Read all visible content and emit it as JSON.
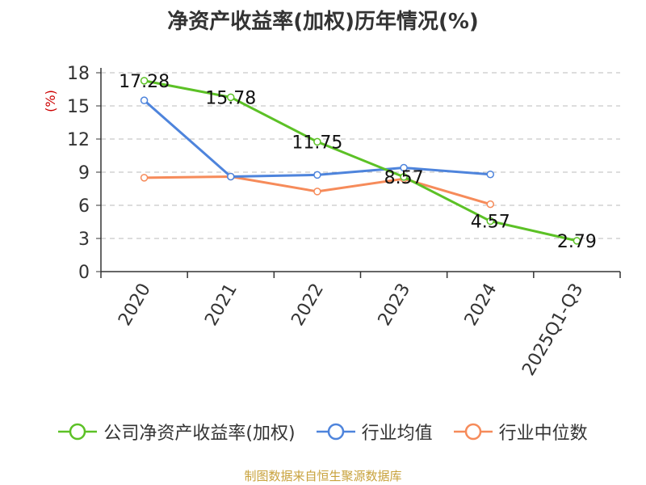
{
  "chart_data": {
    "type": "line",
    "title": "净资产收益率(加权)历年情况(%)",
    "ylabel": "(%)",
    "xlabel": "",
    "categories": [
      "2020",
      "2021",
      "2022",
      "2023",
      "2024",
      "2025Q1-Q3"
    ],
    "ylim": [
      0,
      18
    ],
    "yticks": [
      0,
      3,
      6,
      9,
      12,
      15,
      18
    ],
    "grid": true,
    "legend": "bottom",
    "series": [
      {
        "name": "公司净资产收益率(加权)",
        "color": "#5cc126",
        "values": [
          17.28,
          15.78,
          11.75,
          8.57,
          4.57,
          2.79
        ],
        "labels": [
          "17.28",
          "15.78",
          "11.75",
          "8.57",
          "4.57",
          "2.79"
        ]
      },
      {
        "name": "行业均值",
        "color": "#4e84dc",
        "values": [
          15.5,
          8.6,
          8.75,
          9.4,
          8.8,
          null
        ]
      },
      {
        "name": "行业中位数",
        "color": "#f68b5a",
        "values": [
          8.5,
          8.6,
          7.25,
          8.4,
          6.1,
          null
        ]
      }
    ]
  },
  "ylabel_color": "#cc0000",
  "source": "制图数据来自恒生聚源数据库"
}
